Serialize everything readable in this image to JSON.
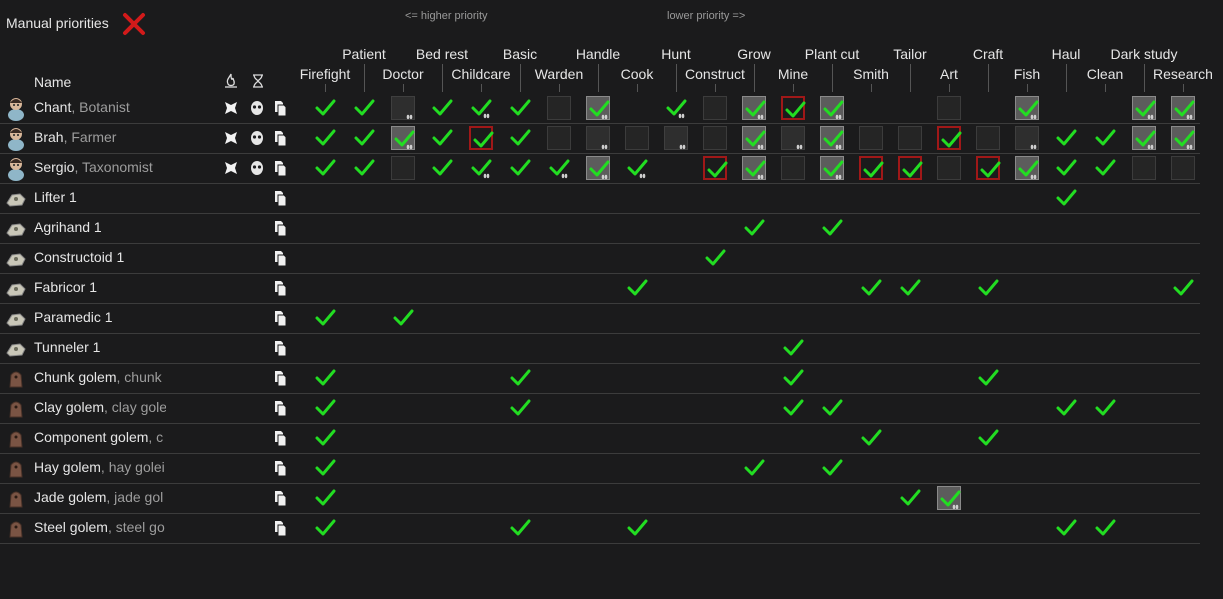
{
  "header": {
    "manual_priorities_label": "Manual priorities",
    "higher_priority_hint": "<= higher priority",
    "lower_priority_hint": "lower priority =>",
    "name_label": "Name"
  },
  "colors": {
    "check_green": "#22dd22",
    "red_outline": "#a01818",
    "background": "#1b1b1c"
  },
  "work_types": [
    {
      "label": "Firefight",
      "row": "lower"
    },
    {
      "label": "Patient",
      "row": "upper"
    },
    {
      "label": "Doctor",
      "row": "lower"
    },
    {
      "label": "Bed rest",
      "row": "upper"
    },
    {
      "label": "Childcare",
      "row": "lower"
    },
    {
      "label": "Basic",
      "row": "upper"
    },
    {
      "label": "Warden",
      "row": "lower"
    },
    {
      "label": "Handle",
      "row": "upper"
    },
    {
      "label": "Cook",
      "row": "lower"
    },
    {
      "label": "Hunt",
      "row": "upper"
    },
    {
      "label": "Construct",
      "row": "lower"
    },
    {
      "label": "Grow",
      "row": "upper"
    },
    {
      "label": "Mine",
      "row": "lower"
    },
    {
      "label": "Plant cut",
      "row": "upper"
    },
    {
      "label": "Smith",
      "row": "lower"
    },
    {
      "label": "Tailor",
      "row": "upper"
    },
    {
      "label": "Art",
      "row": "lower"
    },
    {
      "label": "Craft",
      "row": "upper"
    },
    {
      "label": "Fish",
      "row": "lower"
    },
    {
      "label": "Haul",
      "row": "upper"
    },
    {
      "label": "Clean",
      "row": "lower"
    },
    {
      "label": "Dark study",
      "row": "upper"
    },
    {
      "label": "Research",
      "row": "lower"
    }
  ],
  "pawns": [
    {
      "name": "Chant",
      "title": ", Botanist",
      "avatar": "human-pawn",
      "icons": true,
      "cells": [
        "c",
        "c",
        "d",
        "c",
        "cs",
        "c",
        "e",
        "cb",
        "",
        "cs",
        "e",
        "cb",
        "cr",
        "cb",
        "",
        "",
        "e",
        "",
        "cb",
        "",
        "",
        "cb",
        "cb"
      ]
    },
    {
      "name": "Brah",
      "title": ", Farmer",
      "avatar": "human-pawn",
      "icons": true,
      "cells": [
        "c",
        "c",
        "cb",
        "c",
        "cr",
        "c",
        "e",
        "d",
        "e",
        "d",
        "e",
        "cb",
        "d",
        "cb",
        "e",
        "e",
        "cr",
        "e",
        "d",
        "c",
        "c",
        "cb",
        "cb"
      ]
    },
    {
      "name": "Sergio",
      "title": ", Taxonomist",
      "avatar": "human-pawn",
      "icons": true,
      "cells": [
        "c",
        "c",
        "e",
        "c",
        "cs",
        "c",
        "cs",
        "cb",
        "cs",
        "",
        "cr",
        "cb",
        "e",
        "cb",
        "cr",
        "cr",
        "e",
        "cr",
        "cb",
        "c",
        "c",
        "e",
        "e"
      ]
    },
    {
      "name": "Lifter 1",
      "title": "",
      "avatar": "mech-lifter",
      "icons": false,
      "cells": [
        "",
        "",
        "",
        "",
        "",
        "",
        "",
        "",
        "",
        "",
        "",
        "",
        "",
        "",
        "",
        "",
        "",
        "",
        "",
        "c",
        "",
        "",
        ""
      ]
    },
    {
      "name": "Agrihand 1",
      "title": "",
      "avatar": "mech-agrihand",
      "icons": false,
      "cells": [
        "",
        "",
        "",
        "",
        "",
        "",
        "",
        "",
        "",
        "",
        "",
        "c",
        "",
        "c",
        "",
        "",
        "",
        "",
        "",
        "",
        "",
        "",
        ""
      ]
    },
    {
      "name": "Constructoid 1",
      "title": "",
      "avatar": "mech-constructoid",
      "icons": false,
      "cells": [
        "",
        "",
        "",
        "",
        "",
        "",
        "",
        "",
        "",
        "",
        "c",
        "",
        "",
        "",
        "",
        "",
        "",
        "",
        "",
        "",
        "",
        "",
        ""
      ]
    },
    {
      "name": "Fabricor 1",
      "title": "",
      "avatar": "mech-fabricor",
      "icons": false,
      "cells": [
        "",
        "",
        "",
        "",
        "",
        "",
        "",
        "",
        "c",
        "",
        "",
        "",
        "",
        "",
        "c",
        "c",
        "",
        "c",
        "",
        "",
        "",
        "",
        "c"
      ]
    },
    {
      "name": "Paramedic 1",
      "title": "",
      "avatar": "mech-paramedic",
      "icons": false,
      "cells": [
        "c",
        "",
        "c",
        "",
        "",
        "",
        "",
        "",
        "",
        "",
        "",
        "",
        "",
        "",
        "",
        "",
        "",
        "",
        "",
        "",
        "",
        "",
        ""
      ]
    },
    {
      "name": "Tunneler 1",
      "title": "",
      "avatar": "mech-tunneler",
      "icons": false,
      "cells": [
        "",
        "",
        "",
        "",
        "",
        "",
        "",
        "",
        "",
        "",
        "",
        "",
        "c",
        "",
        "",
        "",
        "",
        "",
        "",
        "",
        "",
        "",
        ""
      ]
    },
    {
      "name": "Chunk golem",
      "title": ", chunk",
      "avatar": "golem-chunk",
      "icons": false,
      "cells": [
        "c",
        "",
        "",
        "",
        "",
        "c",
        "",
        "",
        "",
        "",
        "",
        "",
        "c",
        "",
        "",
        "",
        "",
        "c",
        "",
        "",
        "",
        "",
        ""
      ]
    },
    {
      "name": "Clay golem",
      "title": ", clay gole",
      "avatar": "golem-clay",
      "icons": false,
      "cells": [
        "c",
        "",
        "",
        "",
        "",
        "c",
        "",
        "",
        "",
        "",
        "",
        "",
        "c",
        "c",
        "",
        "",
        "",
        "",
        "",
        "c",
        "c",
        "",
        ""
      ]
    },
    {
      "name": "Component golem",
      "title": ", c",
      "avatar": "golem-component",
      "icons": false,
      "cells": [
        "c",
        "",
        "",
        "",
        "",
        "",
        "",
        "",
        "",
        "",
        "",
        "",
        "",
        "",
        "c",
        "",
        "",
        "c",
        "",
        "",
        "",
        "",
        ""
      ]
    },
    {
      "name": "Hay golem",
      "title": ", hay golei",
      "avatar": "golem-hay",
      "icons": false,
      "cells": [
        "c",
        "",
        "",
        "",
        "",
        "",
        "",
        "",
        "",
        "",
        "",
        "c",
        "",
        "c",
        "",
        "",
        "",
        "",
        "",
        "",
        "",
        "",
        ""
      ]
    },
    {
      "name": "Jade golem",
      "title": ", jade gol",
      "avatar": "golem-jade",
      "icons": false,
      "cells": [
        "c",
        "",
        "",
        "",
        "",
        "",
        "",
        "",
        "",
        "",
        "",
        "",
        "",
        "",
        "",
        "c",
        "cb",
        "",
        "",
        "",
        "",
        "",
        ""
      ]
    },
    {
      "name": "Steel golem",
      "title": ", steel go",
      "avatar": "golem-steel",
      "icons": false,
      "cells": [
        "c",
        "",
        "",
        "",
        "",
        "c",
        "",
        "",
        "c",
        "",
        "",
        "",
        "",
        "",
        "",
        "",
        "",
        "",
        "",
        "c",
        "c",
        "",
        ""
      ]
    }
  ]
}
